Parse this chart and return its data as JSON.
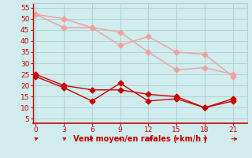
{
  "x": [
    0,
    3,
    6,
    9,
    12,
    15,
    18,
    21
  ],
  "rafales1": [
    52,
    50,
    46,
    44,
    35,
    27,
    28,
    25
  ],
  "rafales2": [
    52,
    46,
    46,
    38,
    42,
    35,
    34,
    24
  ],
  "moyen1": [
    25,
    20,
    18,
    18,
    16,
    15,
    10,
    14
  ],
  "moyen2": [
    24,
    19,
    13,
    21,
    13,
    14,
    10,
    13
  ],
  "color_light": "#f0a0a0",
  "color_dark": "#cc0000",
  "bg_color": "#d0ecec",
  "grid_color": "#aed4d4",
  "xlabel": "Vent moyen/en rafales ( km/h )",
  "xlabel_color": "#cc0000",
  "tick_color": "#cc0000",
  "ylim": [
    3,
    57
  ],
  "xlim": [
    -0.3,
    22.5
  ],
  "yticks": [
    5,
    10,
    15,
    20,
    25,
    30,
    35,
    40,
    45,
    50,
    55
  ],
  "xticks": [
    0,
    3,
    6,
    9,
    12,
    15,
    18,
    21
  ],
  "markersize": 3.5
}
